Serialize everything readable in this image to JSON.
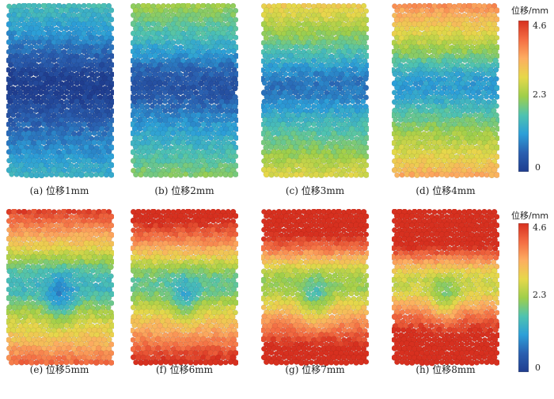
{
  "panels": [
    {
      "caption": "(a) 位移1mm"
    },
    {
      "caption": "(b) 位移2mm"
    },
    {
      "caption": "(c) 位移3mm"
    },
    {
      "caption": "(d) 位移4mm"
    },
    {
      "caption": "(e) 位移5mm"
    },
    {
      "caption": "(f) 位移6mm"
    },
    {
      "caption": "(g) 位移7mm"
    },
    {
      "caption": "(h) 位移8mm"
    }
  ],
  "colorbar": {
    "title": "位移/mm",
    "ticks": [
      "4.6",
      "2.3",
      "0"
    ],
    "colors": [
      "#d7301f",
      "#f46d43",
      "#fdae61",
      "#e6d84a",
      "#9fcf4a",
      "#4fc3b0",
      "#2c9fd8",
      "#2a5fb0",
      "#1f3d8f"
    ]
  }
}
